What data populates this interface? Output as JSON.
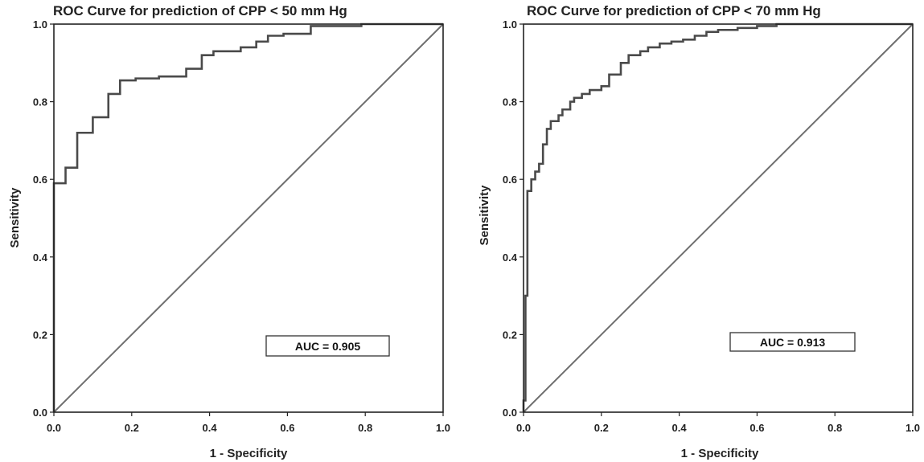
{
  "chart_data": [
    {
      "type": "line",
      "title": "ROC Curve for prediction of CPP < 50 mm Hg",
      "xlabel": "1 - Specificity",
      "ylabel": "Sensitivity",
      "xlim": [
        0.0,
        1.0
      ],
      "ylim": [
        0.0,
        1.0
      ],
      "xticks": [
        "0.0",
        "0.2",
        "0.4",
        "0.6",
        "0.8",
        "1.0"
      ],
      "yticks": [
        "0.0",
        "0.2",
        "0.4",
        "0.6",
        "0.8",
        "1.0"
      ],
      "grid": false,
      "annotation": "AUC = 0.905",
      "colors": {
        "curve": "#4a4a4a",
        "reference": "#6e6e6e",
        "frame": "#222222"
      },
      "series": [
        {
          "role": "roc-curve",
          "x": [
            0.0,
            0.0,
            0.03,
            0.03,
            0.06,
            0.06,
            0.1,
            0.1,
            0.14,
            0.14,
            0.17,
            0.17,
            0.21,
            0.21,
            0.27,
            0.27,
            0.34,
            0.34,
            0.38,
            0.38,
            0.41,
            0.41,
            0.48,
            0.48,
            0.52,
            0.52,
            0.55,
            0.55,
            0.59,
            0.59,
            0.66,
            0.66,
            0.79,
            0.79,
            1.0
          ],
          "y": [
            0.0,
            0.59,
            0.59,
            0.63,
            0.63,
            0.72,
            0.72,
            0.76,
            0.76,
            0.82,
            0.82,
            0.855,
            0.855,
            0.86,
            0.86,
            0.865,
            0.865,
            0.885,
            0.885,
            0.92,
            0.92,
            0.93,
            0.93,
            0.94,
            0.94,
            0.955,
            0.955,
            0.97,
            0.97,
            0.975,
            0.975,
            0.995,
            0.995,
            1.0,
            1.0
          ]
        },
        {
          "role": "reference-line",
          "x": [
            0.0,
            1.0
          ],
          "y": [
            0.0,
            1.0
          ]
        }
      ]
    },
    {
      "type": "line",
      "title": "ROC Curve for prediction of CPP < 70 mm Hg",
      "xlabel": "1 - Specificity",
      "ylabel": "Sensitivity",
      "xlim": [
        0.0,
        1.0
      ],
      "ylim": [
        0.0,
        1.0
      ],
      "xticks": [
        "0.0",
        "0.2",
        "0.4",
        "0.6",
        "0.8",
        "1.0"
      ],
      "yticks": [
        "0.0",
        "0.2",
        "0.4",
        "0.6",
        "0.8",
        "1.0"
      ],
      "grid": false,
      "annotation": "AUC = 0.913",
      "colors": {
        "curve": "#4a4a4a",
        "reference": "#6e6e6e",
        "frame": "#222222"
      },
      "series": [
        {
          "role": "roc-curve",
          "x": [
            0.0,
            0.0,
            0.005,
            0.005,
            0.01,
            0.01,
            0.02,
            0.02,
            0.03,
            0.03,
            0.04,
            0.04,
            0.05,
            0.05,
            0.06,
            0.06,
            0.07,
            0.07,
            0.09,
            0.09,
            0.1,
            0.1,
            0.12,
            0.12,
            0.13,
            0.13,
            0.15,
            0.15,
            0.17,
            0.17,
            0.2,
            0.2,
            0.22,
            0.22,
            0.25,
            0.25,
            0.27,
            0.27,
            0.3,
            0.3,
            0.32,
            0.32,
            0.35,
            0.35,
            0.38,
            0.38,
            0.41,
            0.41,
            0.44,
            0.44,
            0.47,
            0.47,
            0.5,
            0.5,
            0.55,
            0.55,
            0.6,
            0.6,
            0.65,
            0.65,
            0.7,
            0.7,
            1.0
          ],
          "y": [
            0.0,
            0.03,
            0.03,
            0.3,
            0.3,
            0.57,
            0.57,
            0.6,
            0.6,
            0.62,
            0.62,
            0.64,
            0.64,
            0.69,
            0.69,
            0.73,
            0.73,
            0.75,
            0.75,
            0.765,
            0.765,
            0.78,
            0.78,
            0.8,
            0.8,
            0.81,
            0.81,
            0.82,
            0.82,
            0.83,
            0.83,
            0.84,
            0.84,
            0.87,
            0.87,
            0.9,
            0.9,
            0.92,
            0.92,
            0.93,
            0.93,
            0.94,
            0.94,
            0.95,
            0.95,
            0.955,
            0.955,
            0.96,
            0.96,
            0.97,
            0.97,
            0.98,
            0.98,
            0.985,
            0.985,
            0.99,
            0.99,
            0.995,
            0.995,
            1.0,
            1.0,
            1.0,
            1.0
          ]
        },
        {
          "role": "reference-line",
          "x": [
            0.0,
            1.0
          ],
          "y": [
            0.0,
            1.0
          ]
        }
      ]
    }
  ]
}
